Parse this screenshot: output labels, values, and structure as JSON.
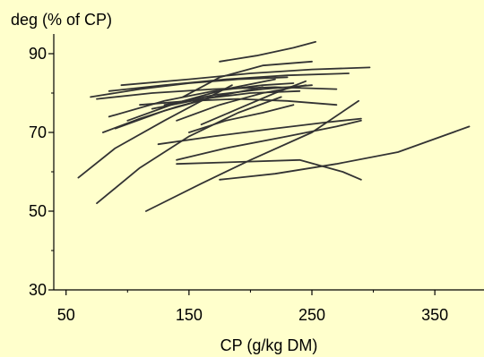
{
  "chart_data": {
    "type": "line",
    "title": "",
    "ylabel": "deg (% of CP)",
    "xlabel": "CP (g/kg DM)",
    "xlim": [
      40,
      390
    ],
    "ylim": [
      30,
      95
    ],
    "x_ticks": [
      50,
      150,
      250,
      350
    ],
    "x_minor_ticks": [
      100,
      200,
      300
    ],
    "y_ticks": [
      30,
      50,
      70,
      90
    ],
    "y_minor_ticks": [
      40,
      60,
      80
    ],
    "grid": false,
    "legend": "none",
    "line_color": "#333333",
    "background": "#FFFFCC",
    "series": [
      {
        "x": [
          60,
          90,
          130,
          160,
          185
        ],
        "y": [
          58.5,
          66,
          73,
          78,
          82
        ]
      },
      {
        "x": [
          75,
          110,
          150,
          190,
          225
        ],
        "y": [
          52,
          61,
          69,
          75,
          79
        ]
      },
      {
        "x": [
          115,
          160,
          200,
          250,
          288
        ],
        "y": [
          50,
          57,
          63,
          70,
          78
        ]
      },
      {
        "x": [
          140,
          190,
          240,
          275,
          290
        ],
        "y": [
          62,
          62.5,
          63,
          60,
          58
        ]
      },
      {
        "x": [
          175,
          220,
          270,
          320,
          378
        ],
        "y": [
          58,
          59.5,
          62,
          65,
          71.5
        ]
      },
      {
        "x": [
          140,
          180,
          230,
          270,
          290
        ],
        "y": [
          63,
          66,
          69,
          71.5,
          73
        ]
      },
      {
        "x": [
          125,
          170,
          220,
          260,
          290
        ],
        "y": [
          67,
          69,
          71,
          72.5,
          73.5
        ]
      },
      {
        "x": [
          150,
          180,
          210,
          235
        ],
        "y": [
          70,
          73,
          75,
          77
        ]
      },
      {
        "x": [
          70,
          110,
          150,
          190,
          230
        ],
        "y": [
          79,
          81,
          82.5,
          83.5,
          84
        ]
      },
      {
        "x": [
          75,
          120,
          170,
          220,
          270
        ],
        "y": [
          78.5,
          80,
          81,
          81.5,
          81
        ]
      },
      {
        "x": [
          85,
          130,
          180,
          230,
          280
        ],
        "y": [
          80.5,
          82,
          83.5,
          84.5,
          85
        ]
      },
      {
        "x": [
          95,
          150,
          200,
          250,
          297
        ],
        "y": [
          82,
          83.5,
          85,
          86,
          86.5
        ]
      },
      {
        "x": [
          110,
          150,
          190,
          230,
          270
        ],
        "y": [
          77,
          78,
          78.5,
          78,
          77
        ]
      },
      {
        "x": [
          120,
          160,
          200,
          240
        ],
        "y": [
          76,
          78.5,
          80,
          80.5
        ]
      },
      {
        "x": [
          130,
          170,
          210,
          250
        ],
        "y": [
          77,
          79.5,
          81,
          82
        ]
      },
      {
        "x": [
          145,
          175,
          210,
          250
        ],
        "y": [
          79,
          84,
          87,
          88
        ]
      },
      {
        "x": [
          175,
          205,
          235,
          253
        ],
        "y": [
          88,
          89.5,
          91.5,
          93
        ]
      },
      {
        "x": [
          80,
          110,
          140,
          170
        ],
        "y": [
          70,
          73.5,
          76.5,
          79
        ]
      },
      {
        "x": [
          90,
          130,
          170,
          210
        ],
        "y": [
          71,
          75.5,
          79,
          81.5
        ]
      },
      {
        "x": [
          100,
          140,
          180,
          220
        ],
        "y": [
          73,
          77.5,
          81,
          83.5
        ]
      },
      {
        "x": [
          85,
          130,
          170,
          210,
          235
        ],
        "y": [
          74,
          78,
          80.5,
          82,
          82.5
        ]
      },
      {
        "x": [
          140,
          175,
          210,
          245
        ],
        "y": [
          73,
          77,
          80,
          82
        ]
      },
      {
        "x": [
          160,
          190,
          220,
          245
        ],
        "y": [
          72,
          76,
          80,
          83
        ]
      }
    ]
  }
}
